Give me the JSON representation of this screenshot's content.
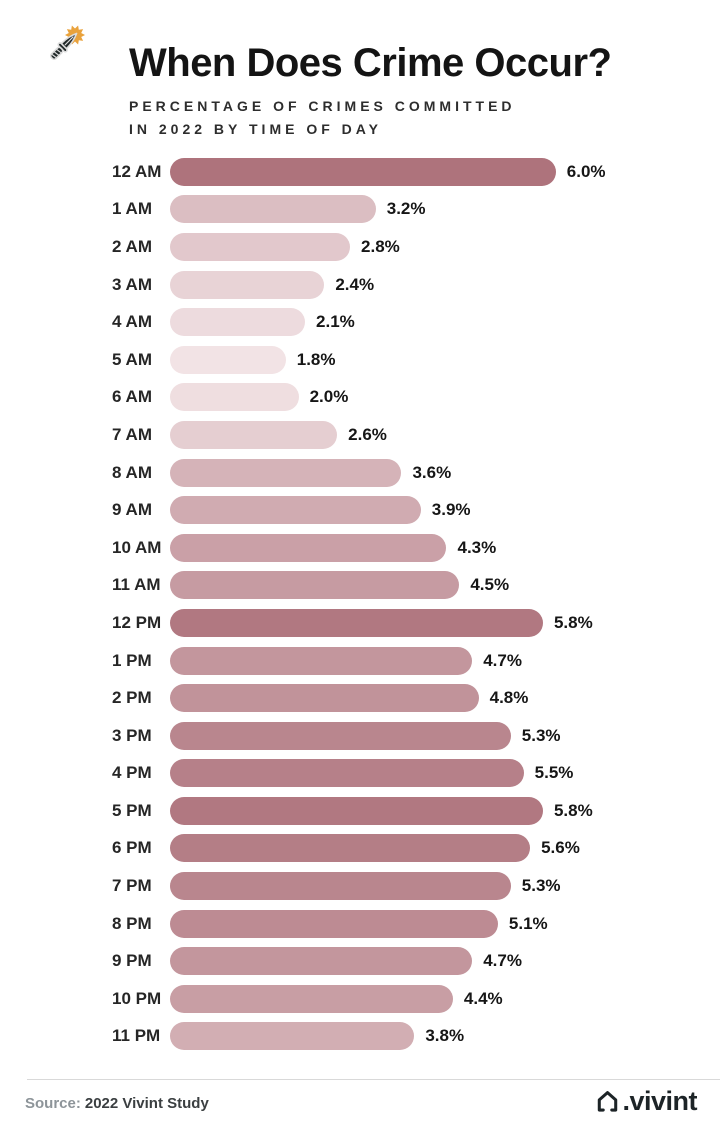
{
  "header": {
    "title": "When Does Crime Occur?",
    "subtitle_line1": "PERCENTAGE OF CRIMES COMMITTED",
    "subtitle_line2": "IN 2022 BY TIME OF DAY",
    "badge_icon": "knife-with-spark-icon"
  },
  "palette": {
    "badge_bg": "#212829",
    "spark_orange": "#e9a23c",
    "knife_outline": "#dcdcdc",
    "bar_color_min": "#f2e3e5",
    "bar_color_max": "#ae737c",
    "text_dark": "#161616",
    "divider": "#d9d9d9",
    "source_prefix_gray": "#8d9499",
    "brand_dark": "#1d2427"
  },
  "chart_data": {
    "type": "bar",
    "orientation": "horizontal",
    "title": "When Does Crime Occur?",
    "subtitle": "PERCENTAGE OF CRIMES COMMITTED IN 2022 BY TIME OF DAY",
    "categories": [
      "12 AM",
      "1 AM",
      "2 AM",
      "3 AM",
      "4 AM",
      "5 AM",
      "6 AM",
      "7 AM",
      "8 AM",
      "9 AM",
      "10 AM",
      "11 AM",
      "12 PM",
      "1 PM",
      "2 PM",
      "3 PM",
      "4 PM",
      "5 PM",
      "6 PM",
      "7 PM",
      "8 PM",
      "9 PM",
      "10 PM",
      "11 PM"
    ],
    "values": [
      6.0,
      3.2,
      2.8,
      2.4,
      2.1,
      1.8,
      2.0,
      2.6,
      3.6,
      3.9,
      4.3,
      4.5,
      5.8,
      4.7,
      4.8,
      5.3,
      5.5,
      5.8,
      5.6,
      5.3,
      5.1,
      4.7,
      4.4,
      3.8
    ],
    "labels": [
      "6.0%",
      "3.2%",
      "2.8%",
      "2.4%",
      "2.1%",
      "1.8%",
      "2.0%",
      "2.6%",
      "3.6%",
      "3.9%",
      "4.3%",
      "4.5%",
      "5.8%",
      "4.7%",
      "4.8%",
      "5.3%",
      "5.5%",
      "5.8%",
      "5.6%",
      "5.3%",
      "5.1%",
      "4.7%",
      "4.4%",
      "3.8%"
    ],
    "xlabel": "",
    "ylabel": "",
    "xlim": [
      0,
      6.0
    ],
    "grid": false,
    "legend": false,
    "value_labels_shown": true,
    "color_encoding": "bar color darkens with value, light pink (min 1.8) to dark rose (max 6.0)"
  },
  "footer": {
    "source_prefix": "Source:",
    "source_text": "2022 Vivint Study",
    "brand_text": ".vivint",
    "brand_icon": "vivint-house-icon"
  }
}
